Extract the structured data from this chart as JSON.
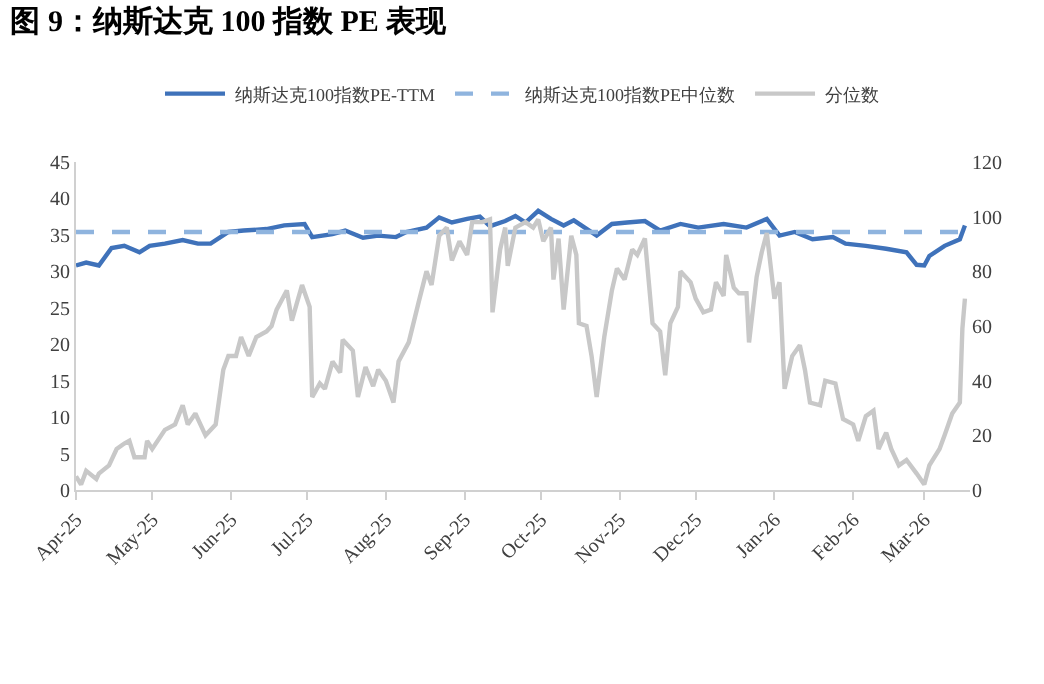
{
  "chart_data": {
    "type": "line",
    "title": "图 9：纳斯达克 100 指数 PE 表现",
    "series": [
      {
        "name": "纳斯达克100指数PE-TTM",
        "color": "#3f72ba",
        "axis": "y",
        "x": [
          "2025-04-01",
          "2025-04-05",
          "2025-04-10",
          "2025-04-15",
          "2025-04-20",
          "2025-04-26",
          "2025-04-30",
          "2025-05-06",
          "2025-05-13",
          "2025-05-19",
          "2025-05-24",
          "2025-05-31",
          "2025-06-06",
          "2025-06-15",
          "2025-06-22",
          "2025-06-30",
          "2025-07-03",
          "2025-07-11",
          "2025-07-16",
          "2025-07-23",
          "2025-07-29",
          "2025-08-05",
          "2025-08-09",
          "2025-08-17",
          "2025-08-22",
          "2025-08-27",
          "2025-09-02",
          "2025-09-07",
          "2025-09-11",
          "2025-09-17",
          "2025-09-21",
          "2025-09-25",
          "2025-09-30",
          "2025-10-05",
          "2025-10-10",
          "2025-10-14",
          "2025-10-23",
          "2025-10-29",
          "2025-11-04",
          "2025-11-11",
          "2025-11-17",
          "2025-11-25",
          "2025-12-02",
          "2025-12-12",
          "2025-12-21",
          "2025-12-29",
          "2026-01-03",
          "2026-01-09",
          "2026-01-16",
          "2026-01-24",
          "2026-01-29",
          "2026-02-06",
          "2026-02-14",
          "2026-02-22",
          "2026-02-26",
          "2026-03-01",
          "2026-03-03",
          "2026-03-09",
          "2026-03-15",
          "2026-03-17"
        ],
        "values": [
          30.8,
          31.2,
          30.8,
          33.2,
          33.5,
          32.6,
          33.5,
          33.8,
          34.3,
          33.8,
          33.8,
          35.4,
          35.6,
          35.8,
          36.3,
          36.5,
          34.7,
          35.1,
          35.6,
          34.6,
          34.9,
          34.7,
          35.4,
          36.0,
          37.4,
          36.7,
          37.2,
          37.5,
          36.2,
          36.9,
          37.6,
          36.7,
          38.3,
          37.2,
          36.3,
          37.0,
          34.9,
          36.5,
          36.7,
          36.9,
          35.6,
          36.5,
          36.0,
          36.5,
          36.0,
          37.2,
          34.9,
          35.4,
          34.4,
          34.7,
          33.8,
          33.5,
          33.1,
          32.6,
          30.9,
          30.8,
          32.1,
          33.5,
          34.4,
          36.3
        ],
        "line_style": "solid"
      },
      {
        "name": "纳斯达克100指数PE中位数",
        "color": "#8fb4de",
        "axis": "y",
        "x": [
          "2025-04-01",
          "2026-03-17"
        ],
        "values": [
          35.4,
          35.4
        ],
        "line_style": "dashed"
      },
      {
        "name": "分位数",
        "color": "#c8c8c8",
        "axis": "y2",
        "x": [
          "2025-04-01",
          "2025-04-03",
          "2025-04-05",
          "2025-04-09",
          "2025-04-10",
          "2025-04-14",
          "2025-04-17",
          "2025-04-20",
          "2025-04-22",
          "2025-04-24",
          "2025-04-28",
          "2025-04-29",
          "2025-05-01",
          "2025-05-06",
          "2025-05-10",
          "2025-05-13",
          "2025-05-15",
          "2025-05-18",
          "2025-05-22",
          "2025-05-26",
          "2025-05-29",
          "2025-05-31",
          "2025-06-03",
          "2025-06-05",
          "2025-06-08",
          "2025-06-11",
          "2025-06-15",
          "2025-06-17",
          "2025-06-19",
          "2025-06-23",
          "2025-06-25",
          "2025-06-29",
          "2025-07-02",
          "2025-07-03",
          "2025-07-06",
          "2025-07-08",
          "2025-07-11",
          "2025-07-14",
          "2025-07-15",
          "2025-07-19",
          "2025-07-21",
          "2025-07-24",
          "2025-07-27",
          "2025-07-29",
          "2025-08-01",
          "2025-08-04",
          "2025-08-06",
          "2025-08-10",
          "2025-08-14",
          "2025-08-17",
          "2025-08-19",
          "2025-08-22",
          "2025-08-25",
          "2025-08-27",
          "2025-08-30",
          "2025-09-02",
          "2025-09-04",
          "2025-09-08",
          "2025-09-11",
          "2025-09-12",
          "2025-09-15",
          "2025-09-17",
          "2025-09-18",
          "2025-09-21",
          "2025-09-25",
          "2025-09-28",
          "2025-09-30",
          "2025-10-02",
          "2025-10-05",
          "2025-10-06",
          "2025-10-08",
          "2025-10-10",
          "2025-10-13",
          "2025-10-15",
          "2025-10-16",
          "2025-10-19",
          "2025-10-21",
          "2025-10-23",
          "2025-10-26",
          "2025-10-29",
          "2025-10-31",
          "2025-11-03",
          "2025-11-06",
          "2025-11-08",
          "2025-11-11",
          "2025-11-14",
          "2025-11-17",
          "2025-11-19",
          "2025-11-21",
          "2025-11-24",
          "2025-11-25",
          "2025-11-29",
          "2025-12-01",
          "2025-12-04",
          "2025-12-07",
          "2025-12-09",
          "2025-12-12",
          "2025-12-13",
          "2025-12-16",
          "2025-12-18",
          "2025-12-21",
          "2025-12-22",
          "2025-12-25",
          "2025-12-27",
          "2025-12-29",
          "2026-01-01",
          "2026-01-03",
          "2026-01-05",
          "2026-01-08",
          "2026-01-11",
          "2026-01-13",
          "2026-01-15",
          "2026-01-19",
          "2026-01-21",
          "2026-01-25",
          "2026-01-28",
          "2026-02-01",
          "2026-02-03",
          "2026-02-06",
          "2026-02-09",
          "2026-02-11",
          "2026-02-14",
          "2026-02-16",
          "2026-02-19",
          "2026-02-22",
          "2026-02-26",
          "2026-03-01",
          "2026-03-03",
          "2026-03-07",
          "2026-03-09",
          "2026-03-12",
          "2026-03-15",
          "2026-03-16",
          "2026-03-17"
        ],
        "values": [
          5,
          2,
          7,
          4,
          6,
          9,
          15,
          17,
          18,
          12,
          12,
          18,
          15,
          22,
          24,
          31,
          24,
          28,
          20,
          24,
          44,
          49,
          49,
          56,
          49,
          56,
          58,
          60,
          66,
          73,
          62,
          75,
          67,
          34,
          39,
          37,
          47,
          43,
          55,
          51,
          34,
          45,
          38,
          44,
          40,
          32,
          47,
          54,
          69,
          80,
          75,
          93,
          96,
          84,
          91,
          86,
          98,
          98,
          99,
          65,
          88,
          96,
          82,
          96,
          98,
          96,
          99,
          91,
          96,
          77,
          92,
          66,
          93,
          86,
          61,
          60,
          49,
          34,
          56,
          73,
          81,
          77,
          88,
          86,
          92,
          61,
          58,
          42,
          61,
          67,
          80,
          76,
          70,
          65,
          66,
          76,
          71,
          86,
          74,
          72,
          72,
          54,
          78,
          87,
          94,
          70,
          76,
          37,
          49,
          53,
          44,
          32,
          31,
          40,
          39,
          26,
          24,
          18,
          27,
          29,
          15,
          21,
          15,
          9,
          11,
          6,
          2,
          9,
          15,
          20,
          28,
          32,
          59,
          70
        ],
        "line_style": "solid"
      }
    ],
    "xlim": [
      "2025-04-01",
      "2026-03-19"
    ],
    "xticks": [
      {
        "value": "2025-04-01",
        "label": "Apr-25"
      },
      {
        "value": "2025-05-01",
        "label": "May-25"
      },
      {
        "value": "2025-06-01",
        "label": "Jun-25"
      },
      {
        "value": "2025-07-01",
        "label": "Jul-25"
      },
      {
        "value": "2025-08-01",
        "label": "Aug-25"
      },
      {
        "value": "2025-09-01",
        "label": "Sep-25"
      },
      {
        "value": "2025-10-01",
        "label": "Oct-25"
      },
      {
        "value": "2025-11-01",
        "label": "Nov-25"
      },
      {
        "value": "2025-12-01",
        "label": "Dec-25"
      },
      {
        "value": "2026-01-01",
        "label": "Jan-26"
      },
      {
        "value": "2026-02-01",
        "label": "Feb-26"
      },
      {
        "value": "2026-03-01",
        "label": "Mar-26"
      }
    ],
    "ylim": [
      0,
      45
    ],
    "yticks": [
      0,
      5,
      10,
      15,
      20,
      25,
      30,
      35,
      40,
      45
    ],
    "y2lim": [
      0,
      120
    ],
    "y2ticks": [
      0,
      20,
      40,
      60,
      80,
      100,
      120
    ],
    "grid": false,
    "legend": "top",
    "marker": "none"
  }
}
